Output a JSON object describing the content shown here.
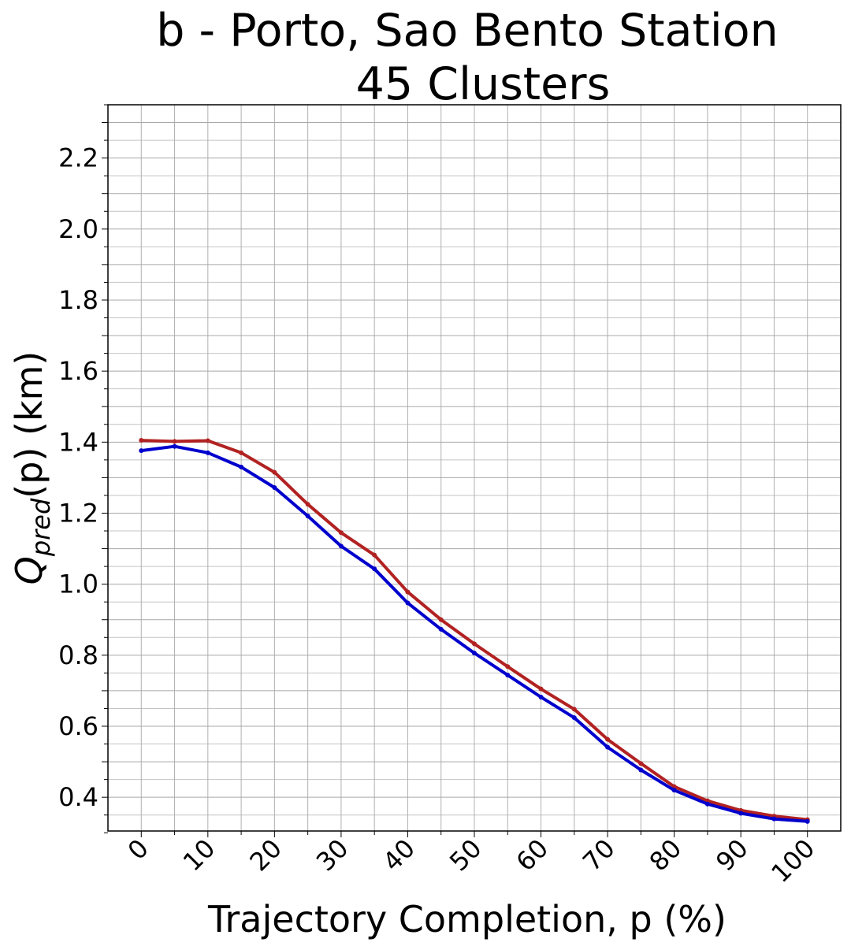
{
  "chart_data": {
    "type": "line",
    "title": [
      "b - Porto, Sao Bento Station",
      "45 Clusters"
    ],
    "xlabel": "Trajectory Completion, p (%)",
    "ylabel": {
      "base": "Q",
      "sub": "pred",
      "rest": "(p) (km)"
    },
    "x": [
      0,
      5,
      10,
      15,
      20,
      25,
      30,
      35,
      40,
      45,
      50,
      55,
      60,
      65,
      70,
      75,
      80,
      85,
      90,
      95,
      100
    ],
    "xlim": [
      -5,
      105
    ],
    "ylim": [
      0.305,
      2.35
    ],
    "xticks": [
      "0",
      "10",
      "20",
      "30",
      "40",
      "50",
      "60",
      "70",
      "80",
      "90",
      "100"
    ],
    "yticks": [
      "0.4",
      "0.6",
      "0.8",
      "1.0",
      "1.2",
      "1.4",
      "1.6",
      "1.8",
      "2.0",
      "2.2"
    ],
    "grid": true,
    "series": [
      {
        "color": "#b22222",
        "values": [
          1.405,
          1.402,
          1.404,
          1.37,
          1.315,
          1.225,
          1.145,
          1.082,
          0.978,
          0.9,
          0.832,
          0.768,
          0.705,
          0.648,
          0.563,
          0.495,
          0.43,
          0.39,
          0.363,
          0.347,
          0.337
        ]
      },
      {
        "color": "#0000cd",
        "values": [
          1.376,
          1.388,
          1.37,
          1.33,
          1.272,
          1.192,
          1.107,
          1.043,
          0.947,
          0.873,
          0.806,
          0.744,
          0.682,
          0.624,
          0.541,
          0.477,
          0.42,
          0.381,
          0.355,
          0.339,
          0.332
        ]
      }
    ]
  }
}
